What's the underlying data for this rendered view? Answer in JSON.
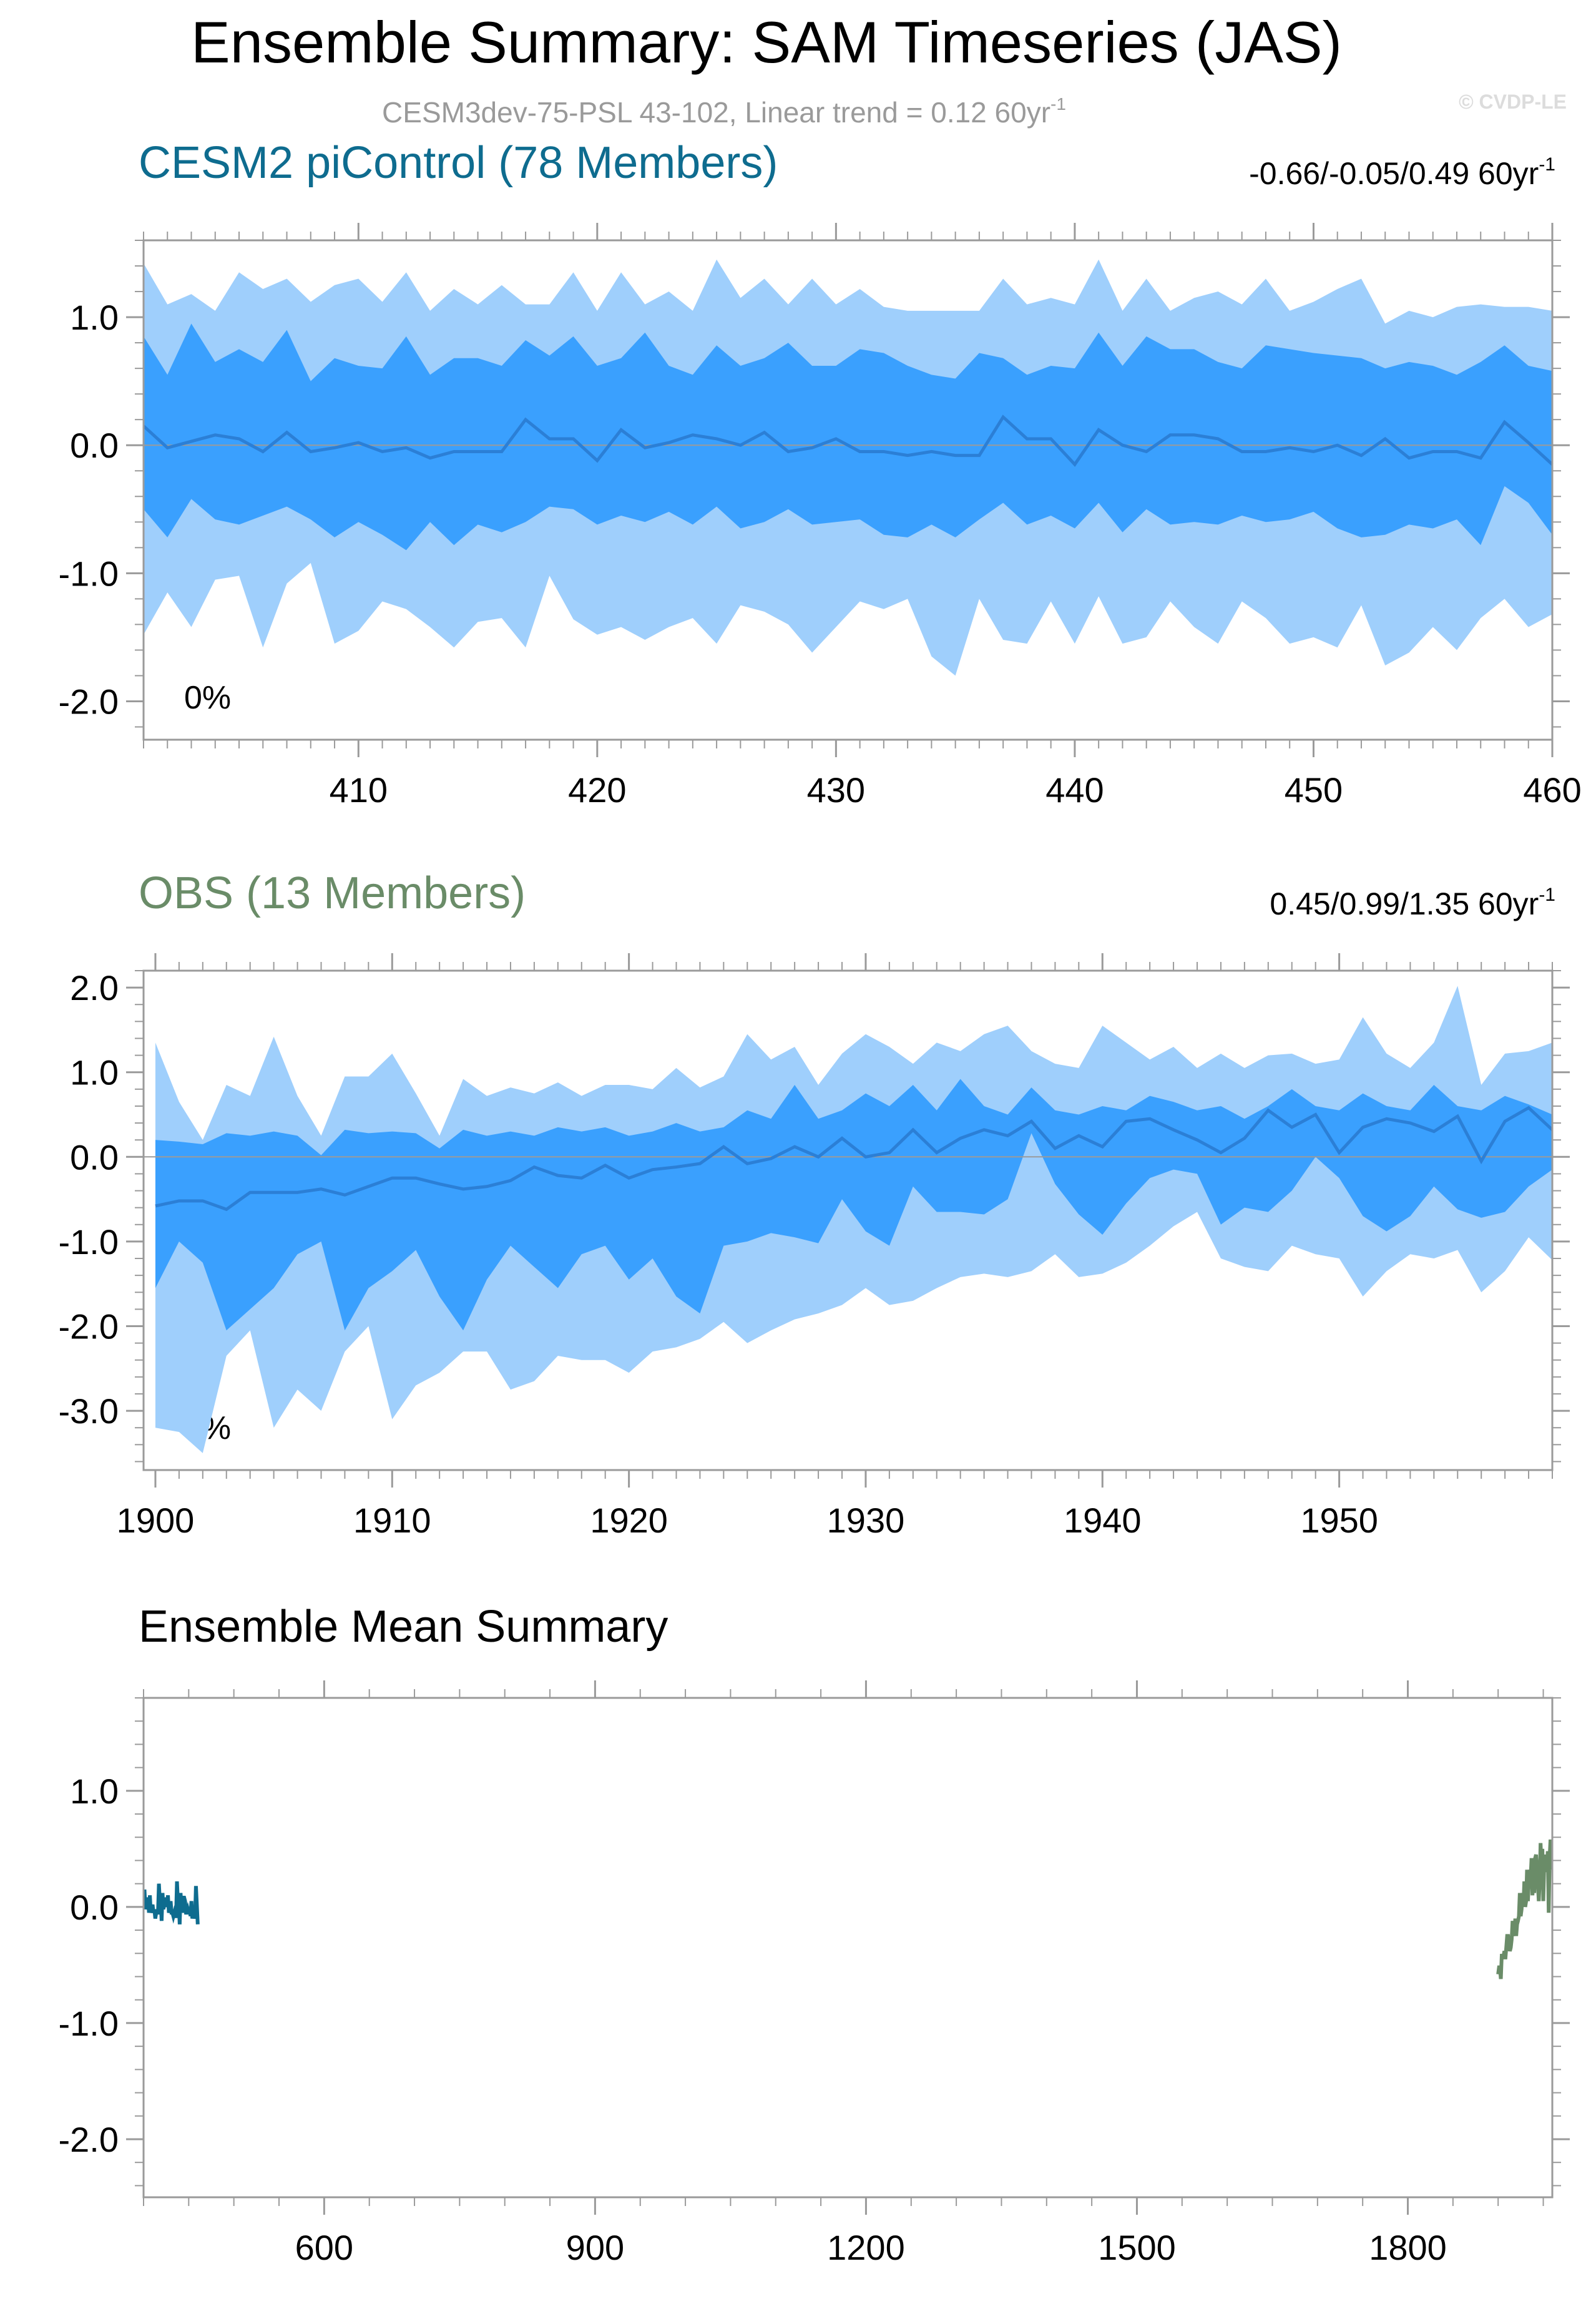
{
  "header": {
    "title": "Ensemble Summary: SAM Timeseries (JAS)",
    "subtitle": "CESM3dev-75-PSL 43-102, Linear trend = 0.12 60yr",
    "subtitle_sup": "-1",
    "copyright": "© CVDP-LE"
  },
  "colors": {
    "outer_band": "#9fcffc",
    "inner_band": "#3aa0fe",
    "mean_line": "#2b7fd6",
    "cesm2_title": "#0e6c8f",
    "obs_title": "#6a8c68",
    "axis": "#9a9a9a"
  },
  "chart_data": [
    {
      "id": "cesm2",
      "type": "area",
      "title": "CESM2 piControl (78 Members)",
      "trend_label": "-0.66/-0.05/0.49 60yr",
      "trend_sup": "-1",
      "corner_label": "0%",
      "x_start": 401,
      "xlim": [
        401,
        460
      ],
      "ylim": [
        -2.3,
        1.6
      ],
      "xticks": [
        410,
        420,
        430,
        440,
        450,
        460
      ],
      "yticks": [
        1.0,
        0.0,
        -1.0,
        -2.0
      ],
      "ytick_labels": [
        "1.0",
        "0.0",
        "-1.0",
        "-2.0"
      ],
      "grid": false,
      "zero_line": true,
      "outer_upper": [
        1.42,
        1.1,
        1.18,
        1.05,
        1.35,
        1.22,
        1.3,
        1.12,
        1.25,
        1.3,
        1.12,
        1.35,
        1.05,
        1.22,
        1.1,
        1.25,
        1.1,
        1.1,
        1.35,
        1.05,
        1.35,
        1.1,
        1.2,
        1.05,
        1.45,
        1.15,
        1.3,
        1.1,
        1.3,
        1.1,
        1.22,
        1.08,
        1.05,
        1.05,
        1.05,
        1.05,
        1.3,
        1.1,
        1.15,
        1.1,
        1.45,
        1.05,
        1.3,
        1.05,
        1.15,
        1.2,
        1.1,
        1.3,
        1.05,
        1.12,
        1.22,
        1.3,
        0.95,
        1.05,
        1.0,
        1.08,
        1.1,
        1.08,
        1.08,
        1.05
      ],
      "inner_upper": [
        0.85,
        0.55,
        0.95,
        0.65,
        0.75,
        0.65,
        0.9,
        0.5,
        0.68,
        0.62,
        0.6,
        0.85,
        0.55,
        0.68,
        0.68,
        0.62,
        0.82,
        0.7,
        0.85,
        0.62,
        0.68,
        0.88,
        0.62,
        0.55,
        0.78,
        0.62,
        0.68,
        0.8,
        0.62,
        0.62,
        0.75,
        0.72,
        0.62,
        0.55,
        0.52,
        0.72,
        0.68,
        0.55,
        0.62,
        0.6,
        0.88,
        0.62,
        0.85,
        0.75,
        0.75,
        0.65,
        0.6,
        0.78,
        0.75,
        0.72,
        0.7,
        0.68,
        0.6,
        0.65,
        0.62,
        0.55,
        0.65,
        0.78,
        0.62,
        0.58
      ],
      "mean": [
        0.15,
        -0.02,
        0.03,
        0.08,
        0.05,
        -0.05,
        0.1,
        -0.05,
        -0.02,
        0.02,
        -0.05,
        -0.02,
        -0.1,
        -0.05,
        -0.05,
        -0.05,
        0.2,
        0.05,
        0.05,
        -0.12,
        0.12,
        -0.02,
        0.02,
        0.08,
        0.05,
        0.0,
        0.1,
        -0.05,
        -0.02,
        0.05,
        -0.05,
        -0.05,
        -0.08,
        -0.05,
        -0.08,
        -0.08,
        0.22,
        0.05,
        0.05,
        -0.15,
        0.12,
        0.0,
        -0.05,
        0.08,
        0.08,
        0.05,
        -0.05,
        -0.05,
        -0.02,
        -0.05,
        0.0,
        -0.08,
        0.05,
        -0.1,
        -0.05,
        -0.05,
        -0.1,
        0.18,
        0.02,
        -0.15
      ],
      "inner_lower": [
        -0.5,
        -0.72,
        -0.42,
        -0.58,
        -0.62,
        -0.55,
        -0.48,
        -0.58,
        -0.72,
        -0.6,
        -0.7,
        -0.82,
        -0.6,
        -0.78,
        -0.62,
        -0.68,
        -0.6,
        -0.48,
        -0.5,
        -0.62,
        -0.55,
        -0.6,
        -0.52,
        -0.62,
        -0.48,
        -0.65,
        -0.6,
        -0.5,
        -0.62,
        -0.6,
        -0.58,
        -0.7,
        -0.72,
        -0.62,
        -0.72,
        -0.58,
        -0.45,
        -0.62,
        -0.55,
        -0.65,
        -0.45,
        -0.68,
        -0.5,
        -0.62,
        -0.6,
        -0.62,
        -0.55,
        -0.6,
        -0.58,
        -0.52,
        -0.65,
        -0.72,
        -0.7,
        -0.62,
        -0.65,
        -0.58,
        -0.78,
        -0.32,
        -0.45,
        -0.7
      ],
      "outer_lower": [
        -1.48,
        -1.15,
        -1.42,
        -1.05,
        -1.02,
        -1.58,
        -1.08,
        -0.92,
        -1.55,
        -1.45,
        -1.22,
        -1.28,
        -1.42,
        -1.58,
        -1.38,
        -1.35,
        -1.58,
        -1.02,
        -1.36,
        -1.48,
        -1.42,
        -1.52,
        -1.42,
        -1.35,
        -1.55,
        -1.25,
        -1.3,
        -1.4,
        -1.62,
        -1.42,
        -1.22,
        -1.28,
        -1.2,
        -1.65,
        -1.8,
        -1.2,
        -1.52,
        -1.55,
        -1.22,
        -1.55,
        -1.18,
        -1.55,
        -1.5,
        -1.22,
        -1.42,
        -1.55,
        -1.22,
        -1.35,
        -1.55,
        -1.5,
        -1.58,
        -1.25,
        -1.72,
        -1.62,
        -1.42,
        -1.6,
        -1.35,
        -1.2,
        -1.42,
        -1.32
      ]
    },
    {
      "id": "obs",
      "type": "area",
      "title": "OBS (13 Members)",
      "trend_label": "0.45/0.99/1.35 60yr",
      "trend_sup": "-1",
      "corner_label": "0%",
      "x_start": 1900,
      "xlim": [
        1899.5,
        1959
      ],
      "ylim": [
        -3.7,
        2.2
      ],
      "xticks": [
        1900,
        1910,
        1920,
        1930,
        1940,
        1950
      ],
      "yticks": [
        2.0,
        1.0,
        0.0,
        -1.0,
        -2.0,
        -3.0
      ],
      "ytick_labels": [
        "2.0",
        "1.0",
        "0.0",
        "-1.0",
        "-2.0",
        "-3.0"
      ],
      "grid": false,
      "zero_line": true,
      "outer_upper": [
        1.35,
        0.65,
        0.2,
        0.85,
        0.72,
        1.42,
        0.72,
        0.25,
        0.95,
        0.95,
        1.22,
        0.75,
        0.25,
        0.92,
        0.72,
        0.82,
        0.75,
        0.88,
        0.72,
        0.85,
        0.85,
        0.8,
        1.05,
        0.82,
        0.95,
        1.45,
        1.15,
        1.3,
        0.85,
        1.22,
        1.45,
        1.3,
        1.1,
        1.35,
        1.25,
        1.45,
        1.55,
        1.25,
        1.1,
        1.05,
        1.55,
        1.35,
        1.15,
        1.3,
        1.05,
        1.22,
        1.05,
        1.2,
        1.22,
        1.1,
        1.15,
        1.65,
        1.22,
        1.05,
        1.35,
        2.02,
        0.85,
        1.22,
        1.25,
        1.35
      ],
      "inner_upper": [
        0.2,
        0.18,
        0.15,
        0.28,
        0.25,
        0.3,
        0.25,
        0.02,
        0.32,
        0.28,
        0.3,
        0.28,
        0.1,
        0.32,
        0.25,
        0.3,
        0.25,
        0.35,
        0.3,
        0.35,
        0.25,
        0.3,
        0.4,
        0.3,
        0.35,
        0.55,
        0.45,
        0.85,
        0.45,
        0.55,
        0.75,
        0.6,
        0.85,
        0.55,
        0.92,
        0.6,
        0.5,
        0.82,
        0.55,
        0.5,
        0.6,
        0.55,
        0.72,
        0.65,
        0.55,
        0.6,
        0.45,
        0.6,
        0.8,
        0.6,
        0.55,
        0.75,
        0.6,
        0.55,
        0.85,
        0.6,
        0.55,
        0.72,
        0.62,
        0.5
      ],
      "mean": [
        -0.58,
        -0.52,
        -0.52,
        -0.62,
        -0.42,
        -0.42,
        -0.42,
        -0.38,
        -0.45,
        -0.35,
        -0.25,
        -0.25,
        -0.32,
        -0.38,
        -0.35,
        -0.28,
        -0.12,
        -0.22,
        -0.25,
        -0.1,
        -0.25,
        -0.15,
        -0.12,
        -0.08,
        0.12,
        -0.08,
        -0.02,
        0.12,
        0.0,
        0.22,
        0.0,
        0.05,
        0.32,
        0.05,
        0.22,
        0.32,
        0.25,
        0.42,
        0.1,
        0.25,
        0.12,
        0.42,
        0.45,
        0.32,
        0.2,
        0.05,
        0.22,
        0.55,
        0.35,
        0.5,
        0.05,
        0.35,
        0.45,
        0.4,
        0.3,
        0.48,
        -0.05,
        0.42,
        0.58,
        0.32
      ],
      "inner_lower": [
        -1.55,
        -1.0,
        -1.25,
        -2.05,
        -1.8,
        -1.55,
        -1.15,
        -1.0,
        -2.05,
        -1.55,
        -1.35,
        -1.1,
        -1.65,
        -2.05,
        -1.45,
        -1.05,
        -1.3,
        -1.55,
        -1.15,
        -1.05,
        -1.45,
        -1.2,
        -1.65,
        -1.85,
        -1.05,
        -1.0,
        -0.9,
        -0.95,
        -1.02,
        -0.5,
        -0.88,
        -1.05,
        -0.35,
        -0.65,
        -0.65,
        -0.68,
        -0.5,
        0.28,
        -0.32,
        -0.68,
        -0.92,
        -0.55,
        -0.25,
        -0.15,
        -0.2,
        -0.8,
        -0.6,
        -0.65,
        -0.4,
        0.0,
        -0.25,
        -0.7,
        -0.88,
        -0.7,
        -0.35,
        -0.62,
        -0.72,
        -0.65,
        -0.35,
        -0.15
      ],
      "outer_lower": [
        -3.2,
        -3.25,
        -3.5,
        -2.35,
        -2.05,
        -3.2,
        -2.75,
        -3.0,
        -2.3,
        -2.0,
        -3.1,
        -2.7,
        -2.55,
        -2.3,
        -2.3,
        -2.75,
        -2.65,
        -2.35,
        -2.4,
        -2.4,
        -2.55,
        -2.3,
        -2.25,
        -2.15,
        -1.95,
        -2.2,
        -2.05,
        -1.92,
        -1.85,
        -1.75,
        -1.55,
        -1.75,
        -1.7,
        -1.55,
        -1.42,
        -1.38,
        -1.42,
        -1.35,
        -1.15,
        -1.42,
        -1.38,
        -1.25,
        -1.05,
        -0.82,
        -0.65,
        -1.2,
        -1.3,
        -1.35,
        -1.05,
        -1.15,
        -1.2,
        -1.65,
        -1.35,
        -1.15,
        -1.2,
        -1.1,
        -1.6,
        -1.35,
        -0.95,
        -1.22
      ]
    },
    {
      "id": "summary",
      "type": "line",
      "title": "Ensemble Mean Summary",
      "xlim": [
        400,
        1960
      ],
      "ylim": [
        -2.5,
        1.8
      ],
      "xticks": [
        600,
        900,
        1200,
        1500,
        1800
      ],
      "yticks": [
        1.0,
        0.0,
        -1.0,
        -2.0
      ],
      "ytick_labels": [
        "1.0",
        "0.0",
        "-1.0",
        "-2.0"
      ],
      "grid": false,
      "zero_line": false,
      "series": [
        {
          "color": "#0e6c8f",
          "source": "cesm2",
          "x_start": 401
        },
        {
          "color": "#6a8c68",
          "source": "obs",
          "x_start": 1900
        }
      ]
    }
  ]
}
